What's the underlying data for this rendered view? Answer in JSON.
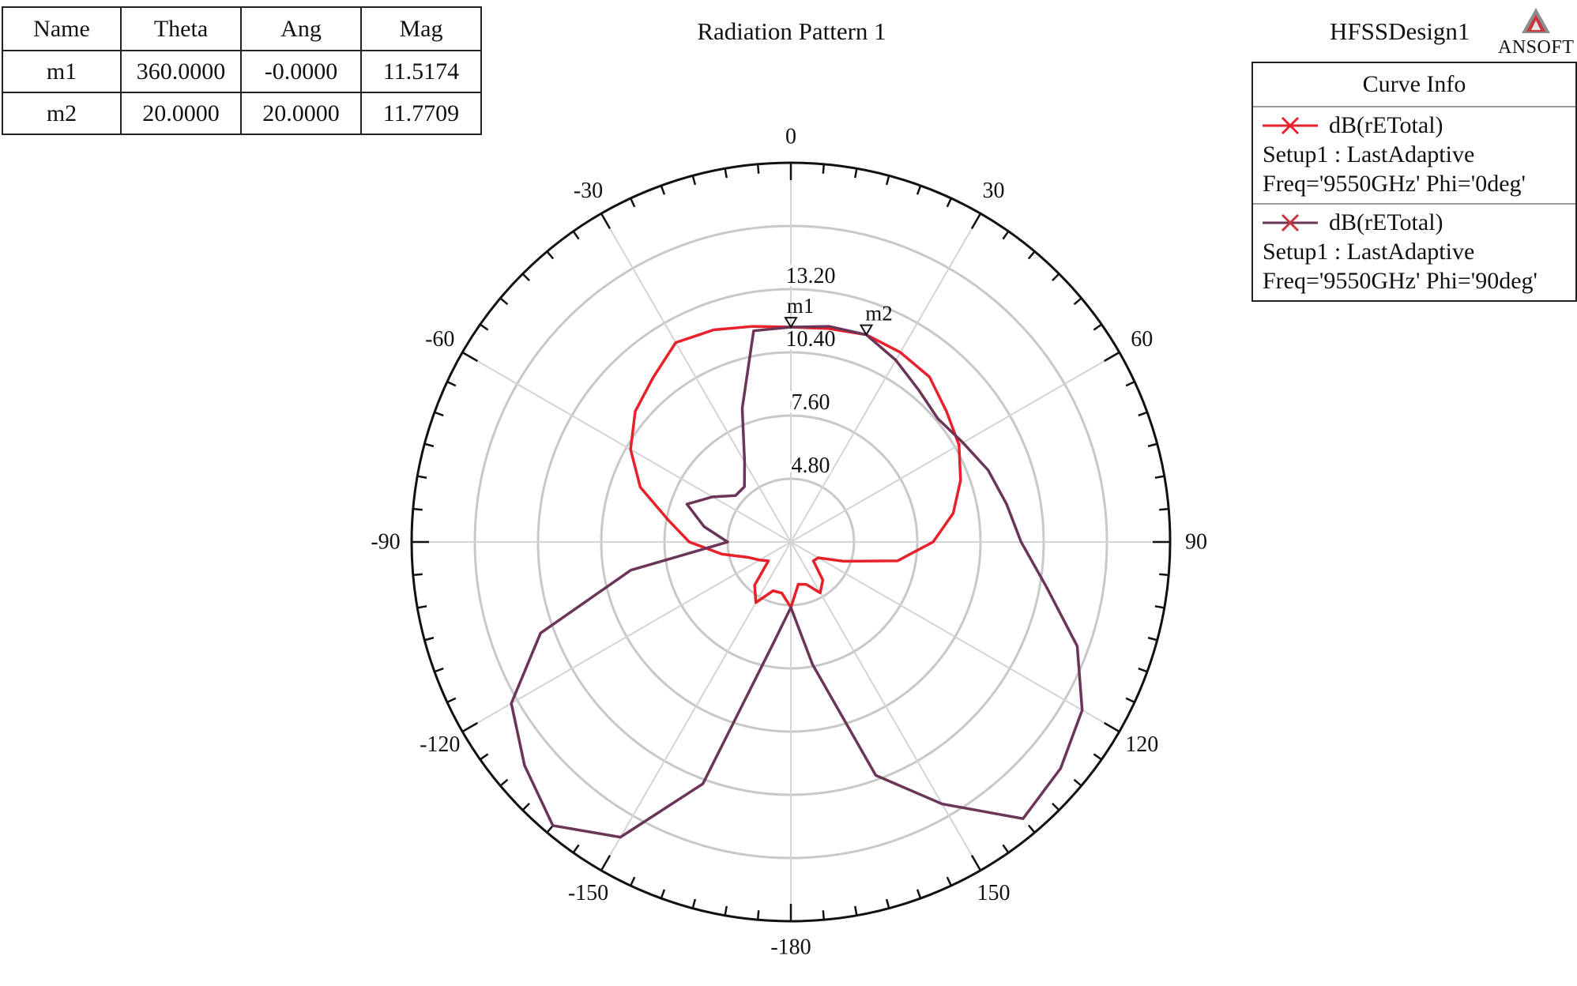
{
  "chart_data": {
    "type": "polar-line",
    "title": "Radiation Pattern 1",
    "design_name": "HFSSDesign1",
    "brand": "ANSOFT",
    "angular_axis": {
      "direction": "clockwise",
      "zero": "top",
      "tick_labels": [
        "0",
        "30",
        "60",
        "90",
        "120",
        "150",
        "-180",
        "-150",
        "-120",
        "-90",
        "-60",
        "-30"
      ],
      "tick_values": [
        0,
        30,
        60,
        90,
        120,
        150,
        180,
        -150,
        -120,
        -90,
        -60,
        -30
      ]
    },
    "radial_axis": {
      "range": [
        2.0,
        18.8
      ],
      "tick_values": [
        4.8,
        7.6,
        10.4,
        13.2
      ],
      "tick_labels": [
        "4.80",
        "7.60",
        "10.40",
        "13.20"
      ]
    },
    "grid": true,
    "marker_table": {
      "headers": [
        "Name",
        "Theta",
        "Ang",
        "Mag"
      ],
      "rows": [
        [
          "m1",
          "360.0000",
          "-0.0000",
          "11.5174"
        ],
        [
          "m2",
          "20.0000",
          "20.0000",
          "11.7709"
        ]
      ]
    },
    "markers": [
      {
        "name": "m1",
        "theta": 0,
        "mag": 11.5174
      },
      {
        "name": "m2",
        "theta": 20,
        "mag": 11.7709
      }
    ],
    "legend": {
      "title": "Curve Info",
      "placement": "top-right",
      "entries": [
        {
          "name": "dB(rETotal)",
          "line2": "Setup1 : LastAdaptive",
          "line3": "Freq='9550GHz' Phi='0deg'",
          "color": "#e8202a"
        },
        {
          "name": "dB(rETotal)",
          "line2": "Setup1 : LastAdaptive",
          "line3": "Freq='9550GHz' Phi='90deg'",
          "color": "#6b3558"
        }
      ]
    },
    "series": [
      {
        "name": "dB(rETotal)",
        "color": "#e8202a",
        "theta": [
          0,
          10,
          20,
          30,
          40,
          50,
          60,
          70,
          80,
          90,
          100,
          110,
          120,
          130,
          140,
          150,
          160,
          170,
          180,
          190,
          200,
          210,
          220,
          230,
          240,
          250,
          260,
          270,
          280,
          290,
          300,
          310,
          320,
          330,
          340,
          350
        ],
        "r": [
          11.52,
          11.6,
          11.77,
          11.7,
          11.55,
          11.0,
          10.6,
          10.0,
          9.3,
          8.3,
          6.8,
          4.5,
          3.4,
          3.3,
          4.2,
          4.6,
          4.0,
          3.9,
          4.9,
          4.3,
          4.3,
          5.1,
          4.5,
          3.3,
          3.6,
          4.0,
          5.1,
          6.5,
          7.5,
          9.1,
          10.2,
          11.0,
          11.5,
          12.2,
          12.0,
          11.7
        ]
      },
      {
        "name": "dB(rETotal)",
        "color": "#6b3558",
        "theta": [
          0,
          10,
          20,
          30,
          40,
          50,
          60,
          70,
          80,
          90,
          100,
          110,
          120,
          130,
          140,
          150,
          160,
          170,
          180,
          190,
          200,
          210,
          220,
          230,
          240,
          250,
          260,
          270,
          280,
          290,
          300,
          310,
          320,
          330,
          340,
          350
        ],
        "r": [
          11.52,
          11.7,
          11.77,
          11.3,
          10.8,
          10.5,
          10.8,
          11.3,
          11.7,
          12.2,
          13.5,
          15.5,
          16.9,
          17.6,
          18.0,
          15.4,
          13.0,
          7.5,
          4.9,
          6.6,
          13.4,
          17.1,
          18.4,
          17.4,
          16.3,
          13.8,
          9.2,
          4.8,
          5.9,
          6.9,
          6.0,
          5.2,
          5.2,
          6.1,
          8.3,
          11.5
        ]
      }
    ]
  }
}
